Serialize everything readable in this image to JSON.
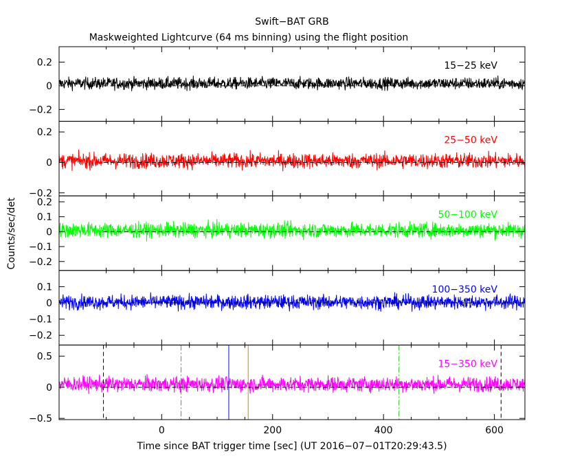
{
  "chart_data": {
    "type": "line",
    "title": "Swift−BAT GRB",
    "subtitle": "Maskweighted Lightcurve (64 ms binning) using the flight position",
    "xlabel": "Time since BAT trigger time [sec] (UT 2016−07−01T20:29:43.5)",
    "ylabel": "Counts/sec/det",
    "xlim": [
      -185,
      655
    ],
    "x_ticks": [
      {
        "value": 0,
        "label": "0"
      },
      {
        "value": 200,
        "label": "200"
      },
      {
        "value": 400,
        "label": "400"
      },
      {
        "value": 600,
        "label": "600"
      }
    ],
    "panels": [
      {
        "name": "15−25 keV",
        "color": "#000000",
        "ylim": [
          -0.3,
          0.33
        ],
        "y_ticks": [
          {
            "value": 0.2,
            "label": "0.2"
          },
          {
            "value": 0,
            "label": "0"
          },
          {
            "value": -0.2,
            "label": "−0.2"
          }
        ],
        "mean": 0.02,
        "spread": 0.025
      },
      {
        "name": "25−50 keV",
        "color": "#ff0000",
        "ylim": [
          -0.22,
          0.27
        ],
        "y_ticks": [
          {
            "value": 0.2,
            "label": "0.2"
          },
          {
            "value": 0,
            "label": "0"
          },
          {
            "value": -0.2,
            "label": "−0.2"
          }
        ],
        "mean": 0.01,
        "spread": 0.025
      },
      {
        "name": "50−100 keV",
        "color": "#00ff00",
        "ylim": [
          -0.26,
          0.24
        ],
        "y_ticks": [
          {
            "value": 0.2,
            "label": "0.2"
          },
          {
            "value": 0.1,
            "label": "0.1"
          },
          {
            "value": 0,
            "label": "0"
          },
          {
            "value": -0.1,
            "label": "−0.1"
          },
          {
            "value": -0.2,
            "label": "−0.2"
          }
        ],
        "mean": 0.01,
        "spread": 0.025
      },
      {
        "name": "100−350 keV",
        "color": "#0000ff",
        "ylim": [
          -0.26,
          0.2
        ],
        "y_ticks": [
          {
            "value": 0.1,
            "label": "0.1"
          },
          {
            "value": 0,
            "label": "0"
          },
          {
            "value": -0.1,
            "label": "−0.1"
          },
          {
            "value": -0.2,
            "label": "−0.2"
          }
        ],
        "mean": 0.005,
        "spread": 0.022
      },
      {
        "name": "15−350 keV",
        "color": "#ff00ff",
        "ylim": [
          -0.52,
          0.68
        ],
        "y_ticks": [
          {
            "value": 0.5,
            "label": "0.5"
          },
          {
            "value": 0,
            "label": "0"
          },
          {
            "value": -0.5,
            "label": "−0.5"
          }
        ],
        "mean": 0.05,
        "spread": 0.06
      }
    ],
    "zero_line_from": -105,
    "markers": [
      {
        "x": -105,
        "color": "#000000",
        "style": "dashed"
      },
      {
        "x": 35,
        "color": "#00cc00",
        "style": "dashdot"
      },
      {
        "x": 121,
        "color": "#0000ff",
        "style": "solid"
      },
      {
        "x": 156,
        "color": "#cc8800",
        "style": "solid"
      },
      {
        "x": 428,
        "color": "#00cc00",
        "style": "dashdot"
      },
      {
        "x": 612,
        "color": "#000000",
        "style": "dashed"
      }
    ]
  }
}
